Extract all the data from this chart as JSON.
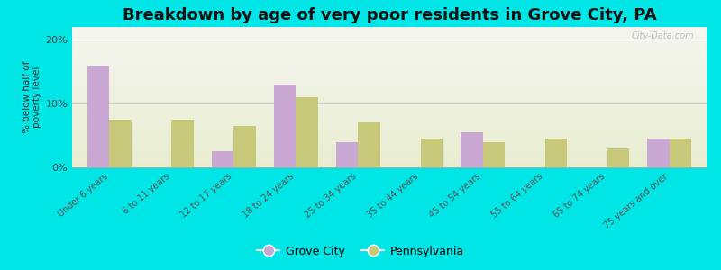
{
  "title": "Breakdown by age of very poor residents in Grove City, PA",
  "ylabel": "% below half of\npoverty level",
  "categories": [
    "Under 6 years",
    "6 to 11 years",
    "12 to 17 years",
    "18 to 24 years",
    "25 to 34 years",
    "35 to 44 years",
    "45 to 54 years",
    "55 to 64 years",
    "65 to 74 years",
    "75 years and over"
  ],
  "grove_city": [
    16.0,
    0.0,
    2.5,
    13.0,
    4.0,
    0.0,
    5.5,
    0.0,
    0.0,
    4.5
  ],
  "pennsylvania": [
    7.5,
    7.5,
    6.5,
    11.0,
    7.0,
    4.5,
    4.0,
    4.5,
    3.0,
    4.5
  ],
  "grove_city_color": "#c9a8d4",
  "pennsylvania_color": "#c8c87a",
  "background_color": "#00e5e5",
  "plot_bg_top": "#f5f5f0",
  "plot_bg_bottom": "#e8edcf",
  "ylim": [
    0,
    22
  ],
  "yticks": [
    0,
    10,
    20
  ],
  "ytick_labels": [
    "0%",
    "10%",
    "20%"
  ],
  "bar_width": 0.35,
  "title_fontsize": 13,
  "watermark": "City-Data.com",
  "legend_grove_city": "Grove City",
  "legend_pennsylvania": "Pennsylvania"
}
